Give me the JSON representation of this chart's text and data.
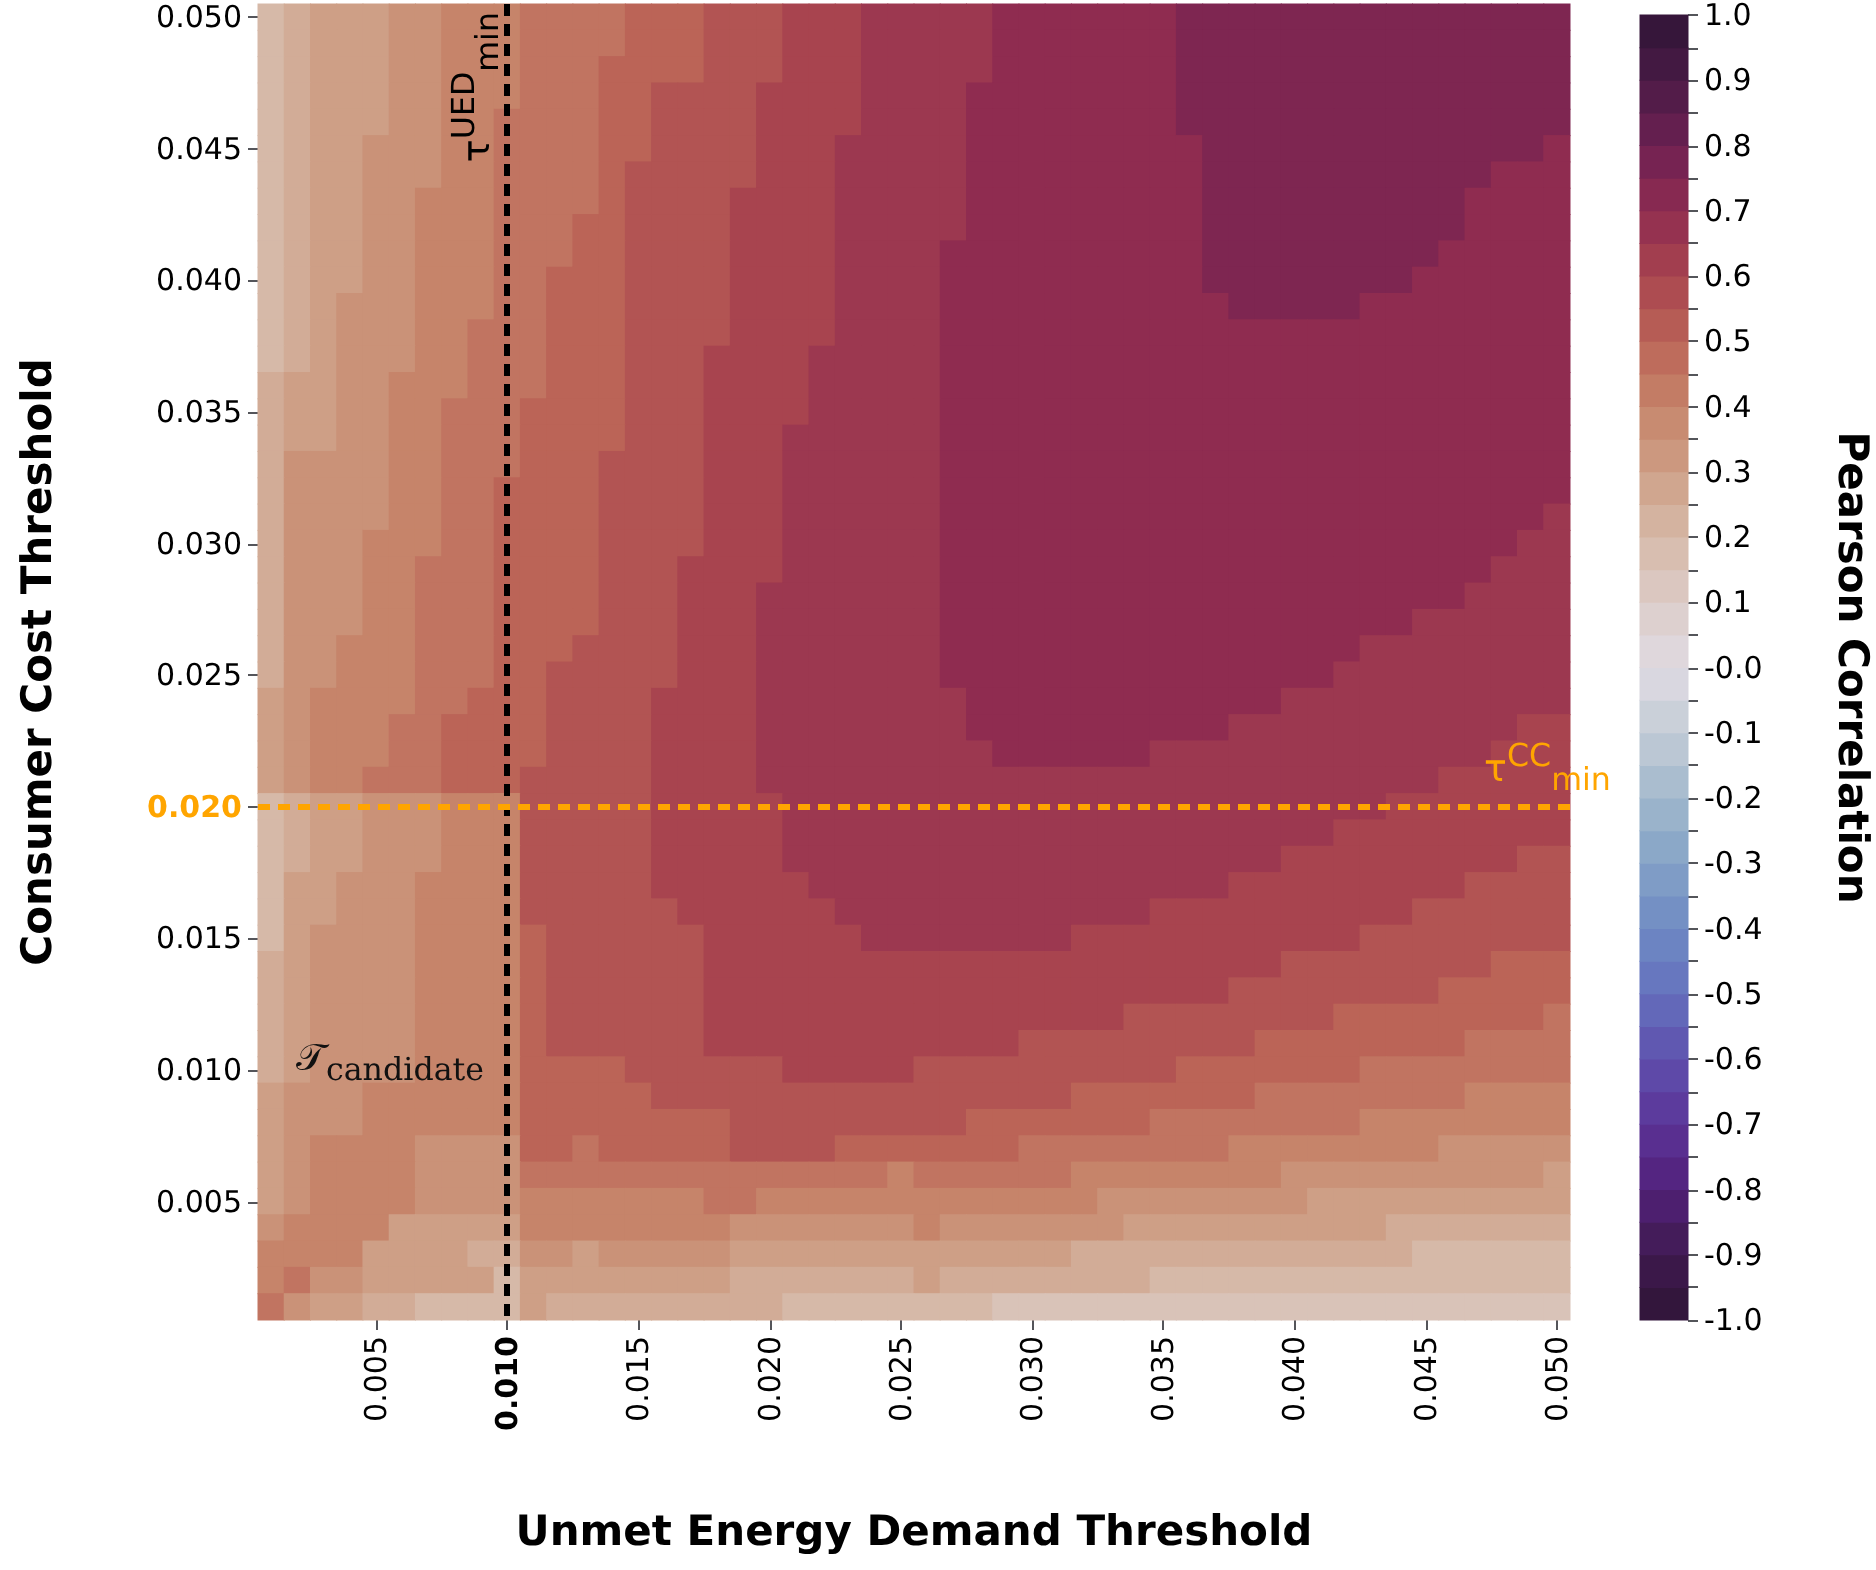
{
  "chart_data": {
    "type": "heatmap",
    "xlabel": "Unmet Energy Demand Threshold",
    "ylabel": "Consumer Cost Threshold",
    "clabel": "Pearson Correlation",
    "categories": [
      null,
      null,
      null,
      null,
      "0.005",
      null,
      null,
      null,
      null,
      "0.010",
      null,
      null,
      null,
      null,
      "0.015",
      null,
      null,
      null,
      null,
      "0.020",
      null,
      null,
      null,
      null,
      "0.025",
      null,
      null,
      null,
      null,
      "0.030",
      null,
      null,
      null,
      null,
      "0.035",
      null,
      null,
      null,
      null,
      "0.040",
      null,
      null,
      null,
      null,
      "0.045",
      null,
      null,
      null,
      null,
      "0.050"
    ],
    "y_categories": [
      "0.050",
      null,
      null,
      null,
      null,
      "0.045",
      null,
      null,
      null,
      null,
      "0.040",
      null,
      null,
      null,
      null,
      "0.035",
      null,
      null,
      null,
      null,
      "0.030",
      null,
      null,
      null,
      null,
      "0.025",
      null,
      null,
      null,
      null,
      "0.020",
      null,
      null,
      null,
      null,
      "0.015",
      null,
      null,
      null,
      null,
      "0.010",
      null,
      null,
      null,
      null,
      "0.005",
      null,
      null,
      null,
      null
    ],
    "clim": [
      -1,
      1
    ],
    "cticks": [
      {
        "value": -1,
        "label": "-1.0"
      },
      {
        "value": -0.95,
        "label": null
      },
      -0.9,
      {
        "value": -0.85,
        "label": null
      },
      -0.8,
      {
        "value": -0.75,
        "label": null
      },
      -0.7,
      {
        "value": -0.65,
        "label": null
      },
      -0.6,
      {
        "value": -0.55,
        "label": null
      },
      -0.5,
      {
        "value": -0.45,
        "label": null
      },
      -0.4,
      {
        "value": -0.35,
        "label": null
      },
      -0.3,
      {
        "value": -0.25,
        "label": null
      },
      -0.2,
      {
        "value": -0.15,
        "label": null
      },
      -0.1,
      {
        "value": -0.05,
        "label": null
      },
      {
        "value": 0,
        "label": "-0.0"
      },
      {
        "value": 0.05,
        "label": null
      },
      0.1,
      {
        "value": 0.15,
        "label": null
      },
      0.2,
      {
        "value": 0.25,
        "label": null
      },
      0.3,
      {
        "value": 0.35,
        "label": null
      },
      0.4,
      {
        "value": 0.45,
        "label": null
      },
      0.5,
      {
        "value": 0.55,
        "label": null
      },
      0.6,
      {
        "value": 0.65,
        "label": null
      },
      0.7,
      {
        "value": 0.75,
        "label": null
      },
      0.8,
      {
        "value": 0.85,
        "label": null
      },
      0.9,
      {
        "value": 0.95,
        "label": null
      },
      {
        "value": 1,
        "label": "1.0"
      }
    ],
    "ref_lines": [
      {
        "axis": "x",
        "value": "0.010",
        "label": "τ$^{UED}$$_{min}$",
        "color": "#000000",
        "line_style": "dashed"
      },
      {
        "axis": "y",
        "value": "0.020",
        "label": "τ$^{CC}$$_{min}$",
        "color": "#ffa500",
        "line_style": "dashed"
      }
    ],
    "annotations": [
      "𝒯$_{candidate}$"
    ],
    "cells": [
      [
        0.2,
        0.25,
        0.3,
        0.3,
        0.3,
        0.35,
        0.35,
        0.4,
        0.4,
        0.4,
        0.45,
        0.45,
        0.45,
        0.45,
        0.5,
        0.5,
        0.5,
        0.55,
        0.55,
        0.55,
        0.6,
        0.6,
        0.6,
        0.65,
        0.65,
        0.65,
        0.65,
        0.65,
        0.7,
        0.7,
        0.7,
        0.7,
        0.7,
        0.7,
        0.7,
        0.75,
        0.75,
        0.75,
        0.75,
        0.75,
        0.75,
        0.75,
        0.75,
        0.75,
        0.75,
        0.75,
        0.75,
        0.75,
        0.75,
        0.75
      ],
      [
        0.2,
        0.25,
        0.3,
        0.3,
        0.3,
        0.35,
        0.35,
        0.4,
        0.4,
        0.4,
        0.45,
        0.45,
        0.45,
        0.45,
        0.5,
        0.5,
        0.5,
        0.55,
        0.55,
        0.55,
        0.6,
        0.6,
        0.6,
        0.65,
        0.65,
        0.65,
        0.65,
        0.65,
        0.7,
        0.7,
        0.7,
        0.7,
        0.7,
        0.7,
        0.7,
        0.75,
        0.75,
        0.75,
        0.75,
        0.75,
        0.75,
        0.75,
        0.75,
        0.75,
        0.75,
        0.75,
        0.75,
        0.75,
        0.75,
        0.75
      ],
      [
        0.2,
        0.25,
        0.3,
        0.3,
        0.3,
        0.35,
        0.35,
        0.4,
        0.4,
        0.4,
        0.45,
        0.45,
        0.45,
        0.5,
        0.5,
        0.5,
        0.5,
        0.55,
        0.55,
        0.55,
        0.6,
        0.6,
        0.6,
        0.65,
        0.65,
        0.65,
        0.65,
        0.65,
        0.7,
        0.7,
        0.7,
        0.7,
        0.7,
        0.7,
        0.7,
        0.75,
        0.75,
        0.75,
        0.75,
        0.75,
        0.75,
        0.75,
        0.75,
        0.75,
        0.75,
        0.75,
        0.75,
        0.75,
        0.75,
        0.75
      ],
      [
        0.2,
        0.25,
        0.3,
        0.3,
        0.3,
        0.35,
        0.35,
        0.4,
        0.4,
        0.4,
        0.45,
        0.45,
        0.45,
        0.5,
        0.5,
        0.55,
        0.55,
        0.55,
        0.55,
        0.6,
        0.6,
        0.6,
        0.6,
        0.65,
        0.65,
        0.65,
        0.65,
        0.7,
        0.7,
        0.7,
        0.7,
        0.7,
        0.7,
        0.7,
        0.7,
        0.75,
        0.75,
        0.75,
        0.75,
        0.75,
        0.75,
        0.75,
        0.75,
        0.75,
        0.75,
        0.75,
        0.75,
        0.75,
        0.75,
        0.75
      ],
      [
        0.2,
        0.25,
        0.3,
        0.3,
        0.3,
        0.35,
        0.35,
        0.4,
        0.4,
        0.45,
        0.45,
        0.45,
        0.45,
        0.5,
        0.5,
        0.55,
        0.55,
        0.55,
        0.55,
        0.6,
        0.6,
        0.6,
        0.6,
        0.65,
        0.65,
        0.65,
        0.65,
        0.7,
        0.7,
        0.7,
        0.7,
        0.7,
        0.7,
        0.7,
        0.7,
        0.75,
        0.75,
        0.75,
        0.75,
        0.75,
        0.75,
        0.75,
        0.75,
        0.75,
        0.75,
        0.75,
        0.75,
        0.75,
        0.75,
        0.75
      ],
      [
        0.2,
        0.25,
        0.3,
        0.3,
        0.35,
        0.35,
        0.35,
        0.4,
        0.4,
        0.45,
        0.45,
        0.45,
        0.45,
        0.5,
        0.5,
        0.55,
        0.55,
        0.55,
        0.55,
        0.6,
        0.6,
        0.6,
        0.65,
        0.65,
        0.65,
        0.65,
        0.65,
        0.7,
        0.7,
        0.7,
        0.7,
        0.7,
        0.7,
        0.7,
        0.7,
        0.7,
        0.75,
        0.75,
        0.75,
        0.75,
        0.75,
        0.75,
        0.75,
        0.75,
        0.75,
        0.75,
        0.75,
        0.75,
        0.75,
        0.7
      ],
      [
        0.2,
        0.25,
        0.3,
        0.3,
        0.35,
        0.35,
        0.35,
        0.4,
        0.4,
        0.45,
        0.45,
        0.45,
        0.45,
        0.5,
        0.55,
        0.55,
        0.55,
        0.55,
        0.55,
        0.6,
        0.6,
        0.6,
        0.65,
        0.65,
        0.65,
        0.65,
        0.65,
        0.7,
        0.7,
        0.7,
        0.7,
        0.7,
        0.7,
        0.7,
        0.7,
        0.7,
        0.75,
        0.75,
        0.75,
        0.75,
        0.75,
        0.75,
        0.75,
        0.75,
        0.75,
        0.75,
        0.75,
        0.7,
        0.7,
        0.7
      ],
      [
        0.2,
        0.25,
        0.3,
        0.3,
        0.35,
        0.35,
        0.4,
        0.4,
        0.4,
        0.45,
        0.45,
        0.45,
        0.45,
        0.5,
        0.55,
        0.55,
        0.55,
        0.55,
        0.6,
        0.6,
        0.6,
        0.6,
        0.65,
        0.65,
        0.65,
        0.65,
        0.65,
        0.7,
        0.7,
        0.7,
        0.7,
        0.7,
        0.7,
        0.7,
        0.7,
        0.7,
        0.75,
        0.75,
        0.75,
        0.75,
        0.75,
        0.75,
        0.75,
        0.75,
        0.75,
        0.75,
        0.7,
        0.7,
        0.7,
        0.7
      ],
      [
        0.2,
        0.25,
        0.3,
        0.3,
        0.35,
        0.35,
        0.4,
        0.4,
        0.4,
        0.45,
        0.45,
        0.45,
        0.5,
        0.5,
        0.55,
        0.55,
        0.55,
        0.55,
        0.6,
        0.6,
        0.6,
        0.6,
        0.65,
        0.65,
        0.65,
        0.65,
        0.65,
        0.7,
        0.7,
        0.7,
        0.7,
        0.7,
        0.7,
        0.7,
        0.7,
        0.7,
        0.75,
        0.75,
        0.75,
        0.75,
        0.75,
        0.75,
        0.75,
        0.75,
        0.75,
        0.75,
        0.7,
        0.7,
        0.7,
        0.7
      ],
      [
        0.2,
        0.25,
        0.3,
        0.3,
        0.35,
        0.35,
        0.4,
        0.4,
        0.4,
        0.45,
        0.45,
        0.45,
        0.5,
        0.5,
        0.55,
        0.55,
        0.55,
        0.55,
        0.6,
        0.6,
        0.6,
        0.6,
        0.65,
        0.65,
        0.65,
        0.65,
        0.7,
        0.7,
        0.7,
        0.7,
        0.7,
        0.7,
        0.7,
        0.7,
        0.7,
        0.7,
        0.75,
        0.75,
        0.75,
        0.75,
        0.75,
        0.75,
        0.75,
        0.75,
        0.75,
        0.7,
        0.7,
        0.7,
        0.7,
        0.7
      ],
      [
        0.2,
        0.25,
        0.3,
        0.3,
        0.35,
        0.35,
        0.4,
        0.4,
        0.4,
        0.45,
        0.45,
        0.5,
        0.5,
        0.5,
        0.55,
        0.55,
        0.55,
        0.55,
        0.6,
        0.6,
        0.6,
        0.6,
        0.65,
        0.65,
        0.65,
        0.65,
        0.7,
        0.7,
        0.7,
        0.7,
        0.7,
        0.7,
        0.7,
        0.7,
        0.7,
        0.7,
        0.75,
        0.75,
        0.75,
        0.75,
        0.75,
        0.75,
        0.75,
        0.75,
        0.7,
        0.7,
        0.7,
        0.7,
        0.7,
        0.7
      ],
      [
        0.2,
        0.25,
        0.3,
        0.35,
        0.35,
        0.35,
        0.4,
        0.4,
        0.4,
        0.45,
        0.45,
        0.5,
        0.5,
        0.5,
        0.55,
        0.55,
        0.55,
        0.55,
        0.6,
        0.6,
        0.6,
        0.6,
        0.65,
        0.65,
        0.65,
        0.65,
        0.7,
        0.7,
        0.7,
        0.7,
        0.7,
        0.7,
        0.7,
        0.7,
        0.7,
        0.7,
        0.7,
        0.75,
        0.75,
        0.75,
        0.75,
        0.75,
        0.7,
        0.7,
        0.7,
        0.7,
        0.7,
        0.7,
        0.7,
        0.7
      ],
      [
        0.2,
        0.25,
        0.3,
        0.35,
        0.35,
        0.35,
        0.4,
        0.4,
        0.45,
        0.45,
        0.45,
        0.5,
        0.5,
        0.5,
        0.55,
        0.55,
        0.55,
        0.55,
        0.6,
        0.6,
        0.6,
        0.6,
        0.65,
        0.65,
        0.65,
        0.65,
        0.7,
        0.7,
        0.7,
        0.7,
        0.7,
        0.7,
        0.7,
        0.7,
        0.7,
        0.7,
        0.7,
        0.7,
        0.7,
        0.7,
        0.7,
        0.7,
        0.7,
        0.7,
        0.7,
        0.7,
        0.7,
        0.7,
        0.7,
        0.7
      ],
      [
        0.2,
        0.25,
        0.3,
        0.35,
        0.35,
        0.35,
        0.4,
        0.4,
        0.45,
        0.45,
        0.45,
        0.5,
        0.5,
        0.5,
        0.55,
        0.55,
        0.55,
        0.6,
        0.6,
        0.6,
        0.6,
        0.65,
        0.65,
        0.65,
        0.65,
        0.65,
        0.7,
        0.7,
        0.7,
        0.7,
        0.7,
        0.7,
        0.7,
        0.7,
        0.7,
        0.7,
        0.7,
        0.7,
        0.7,
        0.7,
        0.7,
        0.7,
        0.7,
        0.7,
        0.7,
        0.7,
        0.7,
        0.7,
        0.7,
        0.7
      ],
      [
        0.25,
        0.3,
        0.3,
        0.35,
        0.35,
        0.4,
        0.4,
        0.4,
        0.45,
        0.45,
        0.45,
        0.5,
        0.5,
        0.5,
        0.55,
        0.55,
        0.55,
        0.6,
        0.6,
        0.6,
        0.6,
        0.65,
        0.65,
        0.65,
        0.65,
        0.65,
        0.7,
        0.7,
        0.7,
        0.7,
        0.7,
        0.7,
        0.7,
        0.7,
        0.7,
        0.7,
        0.7,
        0.7,
        0.7,
        0.7,
        0.7,
        0.7,
        0.7,
        0.7,
        0.7,
        0.7,
        0.7,
        0.7,
        0.7,
        0.7
      ],
      [
        0.25,
        0.3,
        0.3,
        0.35,
        0.35,
        0.4,
        0.4,
        0.45,
        0.45,
        0.45,
        0.5,
        0.5,
        0.5,
        0.5,
        0.55,
        0.55,
        0.55,
        0.6,
        0.6,
        0.6,
        0.6,
        0.65,
        0.65,
        0.65,
        0.65,
        0.65,
        0.7,
        0.7,
        0.7,
        0.7,
        0.7,
        0.7,
        0.7,
        0.7,
        0.7,
        0.7,
        0.7,
        0.7,
        0.7,
        0.7,
        0.7,
        0.7,
        0.7,
        0.7,
        0.7,
        0.7,
        0.7,
        0.7,
        0.7,
        0.7
      ],
      [
        0.25,
        0.3,
        0.3,
        0.35,
        0.35,
        0.4,
        0.4,
        0.45,
        0.45,
        0.45,
        0.5,
        0.5,
        0.5,
        0.5,
        0.55,
        0.55,
        0.55,
        0.6,
        0.6,
        0.6,
        0.65,
        0.65,
        0.65,
        0.65,
        0.65,
        0.65,
        0.7,
        0.7,
        0.7,
        0.7,
        0.7,
        0.7,
        0.7,
        0.7,
        0.7,
        0.7,
        0.7,
        0.7,
        0.7,
        0.7,
        0.7,
        0.7,
        0.7,
        0.7,
        0.7,
        0.7,
        0.7,
        0.7,
        0.7,
        0.7
      ],
      [
        0.25,
        0.35,
        0.35,
        0.35,
        0.35,
        0.4,
        0.4,
        0.45,
        0.45,
        0.45,
        0.5,
        0.5,
        0.5,
        0.55,
        0.55,
        0.55,
        0.55,
        0.6,
        0.6,
        0.6,
        0.65,
        0.65,
        0.65,
        0.65,
        0.65,
        0.65,
        0.7,
        0.7,
        0.7,
        0.7,
        0.7,
        0.7,
        0.7,
        0.7,
        0.7,
        0.7,
        0.7,
        0.7,
        0.7,
        0.7,
        0.7,
        0.7,
        0.7,
        0.7,
        0.7,
        0.7,
        0.7,
        0.7,
        0.7,
        0.7
      ],
      [
        0.25,
        0.35,
        0.35,
        0.35,
        0.35,
        0.4,
        0.4,
        0.45,
        0.45,
        0.5,
        0.5,
        0.5,
        0.5,
        0.55,
        0.55,
        0.55,
        0.55,
        0.6,
        0.6,
        0.6,
        0.65,
        0.65,
        0.65,
        0.65,
        0.65,
        0.65,
        0.7,
        0.7,
        0.7,
        0.7,
        0.7,
        0.7,
        0.7,
        0.7,
        0.7,
        0.7,
        0.7,
        0.7,
        0.7,
        0.7,
        0.7,
        0.7,
        0.7,
        0.7,
        0.7,
        0.7,
        0.7,
        0.7,
        0.7,
        0.7
      ],
      [
        0.25,
        0.35,
        0.35,
        0.35,
        0.35,
        0.4,
        0.4,
        0.45,
        0.45,
        0.5,
        0.5,
        0.5,
        0.5,
        0.55,
        0.55,
        0.55,
        0.55,
        0.6,
        0.6,
        0.6,
        0.65,
        0.65,
        0.65,
        0.65,
        0.65,
        0.65,
        0.7,
        0.7,
        0.7,
        0.7,
        0.7,
        0.7,
        0.7,
        0.7,
        0.7,
        0.7,
        0.7,
        0.7,
        0.7,
        0.7,
        0.7,
        0.7,
        0.7,
        0.7,
        0.7,
        0.7,
        0.7,
        0.7,
        0.7,
        0.65
      ],
      [
        0.25,
        0.35,
        0.35,
        0.35,
        0.4,
        0.4,
        0.4,
        0.45,
        0.45,
        0.5,
        0.5,
        0.5,
        0.5,
        0.55,
        0.55,
        0.55,
        0.55,
        0.6,
        0.6,
        0.6,
        0.65,
        0.65,
        0.65,
        0.65,
        0.65,
        0.65,
        0.7,
        0.7,
        0.7,
        0.7,
        0.7,
        0.7,
        0.7,
        0.7,
        0.7,
        0.7,
        0.7,
        0.7,
        0.7,
        0.7,
        0.7,
        0.7,
        0.7,
        0.7,
        0.7,
        0.7,
        0.7,
        0.7,
        0.65,
        0.65
      ],
      [
        0.25,
        0.35,
        0.35,
        0.35,
        0.4,
        0.4,
        0.45,
        0.45,
        0.45,
        0.5,
        0.5,
        0.5,
        0.5,
        0.55,
        0.55,
        0.55,
        0.6,
        0.6,
        0.6,
        0.6,
        0.65,
        0.65,
        0.65,
        0.65,
        0.65,
        0.65,
        0.7,
        0.7,
        0.7,
        0.7,
        0.7,
        0.7,
        0.7,
        0.7,
        0.7,
        0.7,
        0.7,
        0.7,
        0.7,
        0.7,
        0.7,
        0.7,
        0.7,
        0.7,
        0.7,
        0.7,
        0.7,
        0.65,
        0.65,
        0.65
      ],
      [
        0.25,
        0.35,
        0.35,
        0.35,
        0.4,
        0.4,
        0.45,
        0.45,
        0.45,
        0.5,
        0.5,
        0.5,
        0.5,
        0.55,
        0.55,
        0.55,
        0.6,
        0.6,
        0.6,
        0.65,
        0.65,
        0.65,
        0.65,
        0.65,
        0.65,
        0.65,
        0.7,
        0.7,
        0.7,
        0.7,
        0.7,
        0.7,
        0.7,
        0.7,
        0.7,
        0.7,
        0.7,
        0.7,
        0.7,
        0.7,
        0.7,
        0.7,
        0.7,
        0.7,
        0.7,
        0.7,
        0.65,
        0.65,
        0.65,
        0.65
      ],
      [
        0.25,
        0.35,
        0.35,
        0.35,
        0.4,
        0.4,
        0.45,
        0.45,
        0.45,
        0.5,
        0.5,
        0.5,
        0.5,
        0.55,
        0.55,
        0.55,
        0.6,
        0.6,
        0.6,
        0.65,
        0.65,
        0.65,
        0.65,
        0.65,
        0.65,
        0.65,
        0.7,
        0.7,
        0.7,
        0.7,
        0.7,
        0.7,
        0.7,
        0.7,
        0.7,
        0.7,
        0.7,
        0.7,
        0.7,
        0.7,
        0.7,
        0.7,
        0.7,
        0.7,
        0.65,
        0.65,
        0.65,
        0.65,
        0.65,
        0.65
      ],
      [
        0.25,
        0.35,
        0.35,
        0.4,
        0.4,
        0.4,
        0.45,
        0.45,
        0.45,
        0.5,
        0.5,
        0.5,
        0.55,
        0.55,
        0.55,
        0.55,
        0.6,
        0.6,
        0.6,
        0.65,
        0.65,
        0.65,
        0.65,
        0.65,
        0.65,
        0.65,
        0.7,
        0.7,
        0.7,
        0.7,
        0.7,
        0.7,
        0.7,
        0.7,
        0.7,
        0.7,
        0.7,
        0.7,
        0.7,
        0.7,
        0.7,
        0.7,
        0.65,
        0.65,
        0.65,
        0.65,
        0.65,
        0.65,
        0.65,
        0.65
      ],
      [
        0.25,
        0.35,
        0.35,
        0.4,
        0.4,
        0.4,
        0.45,
        0.45,
        0.45,
        0.5,
        0.5,
        0.55,
        0.55,
        0.55,
        0.55,
        0.55,
        0.6,
        0.6,
        0.6,
        0.65,
        0.65,
        0.65,
        0.65,
        0.65,
        0.65,
        0.65,
        0.7,
        0.7,
        0.7,
        0.7,
        0.7,
        0.7,
        0.7,
        0.7,
        0.7,
        0.7,
        0.7,
        0.7,
        0.7,
        0.7,
        0.7,
        0.65,
        0.65,
        0.65,
        0.65,
        0.65,
        0.65,
        0.65,
        0.65,
        0.65
      ],
      [
        0.3,
        0.35,
        0.4,
        0.4,
        0.4,
        0.4,
        0.45,
        0.45,
        0.5,
        0.5,
        0.5,
        0.55,
        0.55,
        0.55,
        0.55,
        0.6,
        0.6,
        0.6,
        0.6,
        0.65,
        0.65,
        0.65,
        0.65,
        0.65,
        0.65,
        0.65,
        0.65,
        0.7,
        0.7,
        0.7,
        0.7,
        0.7,
        0.7,
        0.7,
        0.7,
        0.7,
        0.7,
        0.7,
        0.7,
        0.65,
        0.65,
        0.65,
        0.65,
        0.65,
        0.65,
        0.65,
        0.65,
        0.65,
        0.65,
        0.65
      ],
      [
        0.3,
        0.35,
        0.4,
        0.4,
        0.4,
        0.45,
        0.45,
        0.5,
        0.5,
        0.5,
        0.5,
        0.55,
        0.55,
        0.55,
        0.55,
        0.6,
        0.6,
        0.6,
        0.6,
        0.65,
        0.65,
        0.65,
        0.65,
        0.65,
        0.65,
        0.65,
        0.65,
        0.7,
        0.7,
        0.7,
        0.7,
        0.7,
        0.7,
        0.7,
        0.7,
        0.7,
        0.7,
        0.65,
        0.65,
        0.65,
        0.65,
        0.65,
        0.65,
        0.65,
        0.65,
        0.65,
        0.65,
        0.65,
        0.6,
        0.6
      ],
      [
        0.3,
        0.35,
        0.4,
        0.4,
        0.4,
        0.45,
        0.45,
        0.5,
        0.5,
        0.5,
        0.5,
        0.55,
        0.55,
        0.55,
        0.55,
        0.6,
        0.6,
        0.6,
        0.6,
        0.65,
        0.65,
        0.65,
        0.65,
        0.65,
        0.65,
        0.65,
        0.65,
        0.65,
        0.7,
        0.7,
        0.7,
        0.7,
        0.7,
        0.7,
        0.65,
        0.65,
        0.65,
        0.65,
        0.65,
        0.65,
        0.65,
        0.65,
        0.65,
        0.65,
        0.65,
        0.65,
        0.65,
        0.6,
        0.6,
        0.6
      ],
      [
        0.3,
        0.35,
        0.4,
        0.4,
        0.45,
        0.45,
        0.45,
        0.5,
        0.5,
        0.5,
        0.55,
        0.55,
        0.55,
        0.55,
        0.55,
        0.6,
        0.6,
        0.6,
        0.6,
        0.65,
        0.65,
        0.65,
        0.65,
        0.65,
        0.65,
        0.65,
        0.65,
        0.65,
        0.65,
        0.65,
        0.65,
        0.65,
        0.65,
        0.65,
        0.65,
        0.65,
        0.65,
        0.65,
        0.65,
        0.65,
        0.65,
        0.65,
        0.65,
        0.65,
        0.65,
        0.6,
        0.6,
        0.6,
        0.6,
        0.6
      ],
      [
        0.2,
        0.25,
        0.3,
        0.3,
        0.35,
        0.35,
        0.35,
        0.4,
        0.4,
        0.4,
        0.55,
        0.55,
        0.55,
        0.55,
        0.55,
        0.6,
        0.6,
        0.6,
        0.6,
        0.6,
        0.65,
        0.65,
        0.65,
        0.65,
        0.65,
        0.65,
        0.65,
        0.65,
        0.65,
        0.65,
        0.65,
        0.65,
        0.65,
        0.65,
        0.65,
        0.65,
        0.65,
        0.65,
        0.65,
        0.65,
        0.65,
        0.65,
        0.65,
        0.6,
        0.6,
        0.6,
        0.6,
        0.6,
        0.6,
        0.6
      ],
      [
        0.2,
        0.25,
        0.3,
        0.3,
        0.35,
        0.35,
        0.35,
        0.4,
        0.4,
        0.4,
        0.55,
        0.55,
        0.55,
        0.55,
        0.55,
        0.6,
        0.6,
        0.6,
        0.6,
        0.6,
        0.65,
        0.65,
        0.65,
        0.65,
        0.65,
        0.65,
        0.65,
        0.65,
        0.65,
        0.65,
        0.65,
        0.65,
        0.65,
        0.65,
        0.65,
        0.65,
        0.65,
        0.65,
        0.65,
        0.65,
        0.65,
        0.6,
        0.6,
        0.6,
        0.6,
        0.6,
        0.6,
        0.6,
        0.6,
        0.6
      ],
      [
        0.2,
        0.25,
        0.3,
        0.3,
        0.35,
        0.35,
        0.35,
        0.4,
        0.4,
        0.4,
        0.55,
        0.55,
        0.55,
        0.55,
        0.55,
        0.6,
        0.6,
        0.6,
        0.6,
        0.6,
        0.65,
        0.65,
        0.65,
        0.65,
        0.65,
        0.65,
        0.65,
        0.65,
        0.65,
        0.65,
        0.65,
        0.65,
        0.65,
        0.65,
        0.65,
        0.65,
        0.65,
        0.65,
        0.65,
        0.6,
        0.6,
        0.6,
        0.6,
        0.6,
        0.6,
        0.6,
        0.6,
        0.6,
        0.55,
        0.55
      ],
      [
        0.2,
        0.3,
        0.3,
        0.35,
        0.35,
        0.35,
        0.4,
        0.4,
        0.4,
        0.4,
        0.55,
        0.55,
        0.55,
        0.55,
        0.55,
        0.6,
        0.6,
        0.6,
        0.6,
        0.6,
        0.6,
        0.65,
        0.65,
        0.65,
        0.65,
        0.65,
        0.65,
        0.65,
        0.65,
        0.65,
        0.65,
        0.65,
        0.65,
        0.65,
        0.65,
        0.65,
        0.65,
        0.6,
        0.6,
        0.6,
        0.6,
        0.6,
        0.6,
        0.6,
        0.6,
        0.6,
        0.55,
        0.55,
        0.55,
        0.55
      ],
      [
        0.2,
        0.3,
        0.3,
        0.35,
        0.35,
        0.35,
        0.4,
        0.4,
        0.4,
        0.4,
        0.55,
        0.55,
        0.55,
        0.55,
        0.55,
        0.55,
        0.6,
        0.6,
        0.6,
        0.6,
        0.6,
        0.6,
        0.65,
        0.65,
        0.65,
        0.65,
        0.65,
        0.65,
        0.65,
        0.65,
        0.65,
        0.65,
        0.65,
        0.65,
        0.6,
        0.6,
        0.6,
        0.6,
        0.6,
        0.6,
        0.6,
        0.6,
        0.6,
        0.6,
        0.55,
        0.55,
        0.55,
        0.55,
        0.55,
        0.55
      ],
      [
        0.2,
        0.3,
        0.35,
        0.35,
        0.35,
        0.35,
        0.4,
        0.4,
        0.4,
        0.4,
        0.5,
        0.55,
        0.55,
        0.55,
        0.55,
        0.55,
        0.55,
        0.6,
        0.6,
        0.6,
        0.6,
        0.6,
        0.6,
        0.65,
        0.65,
        0.65,
        0.65,
        0.65,
        0.65,
        0.65,
        0.65,
        0.6,
        0.6,
        0.6,
        0.6,
        0.6,
        0.6,
        0.6,
        0.6,
        0.6,
        0.6,
        0.6,
        0.55,
        0.55,
        0.55,
        0.55,
        0.55,
        0.55,
        0.55,
        0.55
      ],
      [
        0.25,
        0.3,
        0.35,
        0.35,
        0.35,
        0.35,
        0.4,
        0.4,
        0.4,
        0.4,
        0.5,
        0.55,
        0.55,
        0.55,
        0.55,
        0.55,
        0.55,
        0.6,
        0.6,
        0.6,
        0.6,
        0.6,
        0.6,
        0.6,
        0.6,
        0.6,
        0.6,
        0.6,
        0.6,
        0.6,
        0.6,
        0.6,
        0.6,
        0.6,
        0.6,
        0.6,
        0.6,
        0.6,
        0.6,
        0.55,
        0.55,
        0.55,
        0.55,
        0.55,
        0.55,
        0.55,
        0.55,
        0.5,
        0.5,
        0.5
      ],
      [
        0.25,
        0.3,
        0.35,
        0.35,
        0.35,
        0.35,
        0.4,
        0.4,
        0.4,
        0.4,
        0.5,
        0.55,
        0.55,
        0.55,
        0.55,
        0.55,
        0.55,
        0.6,
        0.6,
        0.6,
        0.6,
        0.6,
        0.6,
        0.6,
        0.6,
        0.6,
        0.6,
        0.6,
        0.6,
        0.6,
        0.6,
        0.6,
        0.6,
        0.6,
        0.6,
        0.6,
        0.6,
        0.55,
        0.55,
        0.55,
        0.55,
        0.55,
        0.55,
        0.55,
        0.55,
        0.5,
        0.5,
        0.5,
        0.5,
        0.5
      ],
      [
        0.25,
        0.3,
        0.35,
        0.35,
        0.35,
        0.35,
        0.4,
        0.4,
        0.4,
        0.4,
        0.5,
        0.55,
        0.55,
        0.55,
        0.55,
        0.55,
        0.55,
        0.6,
        0.6,
        0.6,
        0.6,
        0.6,
        0.6,
        0.6,
        0.6,
        0.6,
        0.6,
        0.6,
        0.6,
        0.6,
        0.6,
        0.6,
        0.6,
        0.55,
        0.55,
        0.55,
        0.55,
        0.55,
        0.55,
        0.55,
        0.55,
        0.5,
        0.5,
        0.5,
        0.5,
        0.5,
        0.5,
        0.5,
        0.5,
        0.45
      ],
      [
        0.25,
        0.3,
        0.35,
        0.35,
        0.35,
        0.35,
        0.4,
        0.4,
        0.4,
        0.4,
        0.5,
        0.55,
        0.55,
        0.55,
        0.55,
        0.55,
        0.55,
        0.6,
        0.6,
        0.6,
        0.6,
        0.6,
        0.6,
        0.6,
        0.6,
        0.6,
        0.6,
        0.6,
        0.6,
        0.55,
        0.55,
        0.55,
        0.55,
        0.55,
        0.55,
        0.55,
        0.55,
        0.55,
        0.5,
        0.5,
        0.5,
        0.5,
        0.5,
        0.5,
        0.5,
        0.5,
        0.45,
        0.45,
        0.45,
        0.45
      ],
      [
        0.25,
        0.3,
        0.35,
        0.35,
        0.35,
        0.35,
        0.4,
        0.4,
        0.4,
        0.4,
        0.5,
        0.5,
        0.5,
        0.5,
        0.55,
        0.55,
        0.55,
        0.55,
        0.55,
        0.55,
        0.6,
        0.6,
        0.6,
        0.6,
        0.6,
        0.55,
        0.55,
        0.55,
        0.55,
        0.55,
        0.55,
        0.55,
        0.55,
        0.55,
        0.55,
        0.5,
        0.5,
        0.5,
        0.5,
        0.5,
        0.5,
        0.5,
        0.45,
        0.45,
        0.45,
        0.45,
        0.45,
        0.45,
        0.45,
        0.45
      ],
      [
        0.3,
        0.35,
        0.35,
        0.35,
        0.4,
        0.4,
        0.4,
        0.4,
        0.4,
        0.4,
        0.5,
        0.5,
        0.5,
        0.5,
        0.5,
        0.55,
        0.55,
        0.55,
        0.55,
        0.55,
        0.55,
        0.55,
        0.55,
        0.55,
        0.55,
        0.55,
        0.55,
        0.55,
        0.55,
        0.55,
        0.55,
        0.5,
        0.5,
        0.5,
        0.5,
        0.5,
        0.5,
        0.5,
        0.45,
        0.45,
        0.45,
        0.45,
        0.45,
        0.45,
        0.45,
        0.45,
        0.4,
        0.4,
        0.4,
        0.4
      ],
      [
        0.3,
        0.35,
        0.35,
        0.35,
        0.4,
        0.4,
        0.4,
        0.4,
        0.4,
        0.4,
        0.5,
        0.5,
        0.5,
        0.5,
        0.5,
        0.5,
        0.5,
        0.5,
        0.55,
        0.55,
        0.55,
        0.55,
        0.55,
        0.55,
        0.55,
        0.55,
        0.55,
        0.5,
        0.5,
        0.5,
        0.5,
        0.5,
        0.5,
        0.5,
        0.45,
        0.45,
        0.45,
        0.45,
        0.45,
        0.45,
        0.45,
        0.45,
        0.4,
        0.4,
        0.4,
        0.4,
        0.4,
        0.4,
        0.4,
        0.4
      ],
      [
        0.3,
        0.35,
        0.4,
        0.4,
        0.4,
        0.4,
        0.35,
        0.35,
        0.35,
        0.35,
        0.5,
        0.5,
        0.45,
        0.5,
        0.5,
        0.5,
        0.5,
        0.5,
        0.55,
        0.55,
        0.55,
        0.55,
        0.5,
        0.5,
        0.5,
        0.5,
        0.5,
        0.5,
        0.5,
        0.45,
        0.45,
        0.45,
        0.45,
        0.45,
        0.45,
        0.45,
        0.45,
        0.4,
        0.4,
        0.4,
        0.4,
        0.4,
        0.4,
        0.4,
        0.4,
        0.35,
        0.35,
        0.35,
        0.35,
        0.35
      ],
      [
        0.3,
        0.35,
        0.4,
        0.4,
        0.4,
        0.4,
        0.35,
        0.35,
        0.35,
        0.35,
        0.45,
        0.45,
        0.45,
        0.45,
        0.45,
        0.45,
        0.45,
        0.45,
        0.45,
        0.45,
        0.45,
        0.45,
        0.45,
        0.45,
        0.4,
        0.45,
        0.45,
        0.45,
        0.45,
        0.45,
        0.45,
        0.4,
        0.4,
        0.4,
        0.4,
        0.4,
        0.4,
        0.4,
        0.4,
        0.35,
        0.35,
        0.35,
        0.35,
        0.35,
        0.35,
        0.35,
        0.35,
        0.35,
        0.35,
        0.3
      ],
      [
        0.3,
        0.35,
        0.4,
        0.4,
        0.4,
        0.4,
        0.35,
        0.35,
        0.35,
        0.35,
        0.4,
        0.4,
        0.4,
        0.4,
        0.4,
        0.4,
        0.4,
        0.45,
        0.45,
        0.4,
        0.4,
        0.4,
        0.4,
        0.4,
        0.4,
        0.4,
        0.4,
        0.4,
        0.4,
        0.4,
        0.4,
        0.4,
        0.35,
        0.35,
        0.35,
        0.35,
        0.35,
        0.35,
        0.35,
        0.35,
        0.3,
        0.3,
        0.3,
        0.3,
        0.3,
        0.3,
        0.3,
        0.3,
        0.3,
        0.3
      ],
      [
        0.35,
        0.4,
        0.4,
        0.4,
        0.4,
        0.3,
        0.3,
        0.3,
        0.3,
        0.3,
        0.4,
        0.4,
        0.4,
        0.4,
        0.4,
        0.4,
        0.4,
        0.4,
        0.35,
        0.35,
        0.35,
        0.35,
        0.35,
        0.35,
        0.35,
        0.4,
        0.35,
        0.35,
        0.35,
        0.35,
        0.35,
        0.35,
        0.35,
        0.3,
        0.3,
        0.3,
        0.3,
        0.3,
        0.3,
        0.3,
        0.3,
        0.3,
        0.3,
        0.25,
        0.25,
        0.25,
        0.25,
        0.25,
        0.25,
        0.25
      ],
      [
        0.4,
        0.4,
        0.4,
        0.4,
        0.3,
        0.3,
        0.3,
        0.3,
        0.25,
        0.25,
        0.35,
        0.35,
        0.3,
        0.35,
        0.35,
        0.35,
        0.35,
        0.35,
        0.3,
        0.3,
        0.3,
        0.3,
        0.3,
        0.3,
        0.3,
        0.3,
        0.3,
        0.3,
        0.3,
        0.3,
        0.3,
        0.25,
        0.25,
        0.25,
        0.25,
        0.25,
        0.25,
        0.25,
        0.25,
        0.25,
        0.25,
        0.25,
        0.25,
        0.25,
        0.2,
        0.2,
        0.2,
        0.2,
        0.2,
        0.2
      ],
      [
        0.4,
        0.45,
        0.35,
        0.35,
        0.3,
        0.3,
        0.3,
        0.3,
        0.3,
        0.2,
        0.3,
        0.3,
        0.3,
        0.3,
        0.3,
        0.3,
        0.3,
        0.3,
        0.25,
        0.25,
        0.25,
        0.25,
        0.25,
        0.25,
        0.25,
        0.3,
        0.25,
        0.25,
        0.25,
        0.25,
        0.25,
        0.25,
        0.25,
        0.25,
        0.2,
        0.2,
        0.2,
        0.2,
        0.2,
        0.2,
        0.2,
        0.2,
        0.2,
        0.2,
        0.2,
        0.2,
        0.2,
        0.2,
        0.2,
        0.2
      ],
      [
        0.45,
        0.35,
        0.3,
        0.3,
        0.25,
        0.25,
        0.2,
        0.2,
        0.2,
        0.2,
        0.3,
        0.25,
        0.25,
        0.25,
        0.25,
        0.25,
        0.25,
        0.25,
        0.25,
        0.25,
        0.2,
        0.2,
        0.2,
        0.2,
        0.2,
        0.2,
        0.2,
        0.2,
        0.15,
        0.15,
        0.15,
        0.15,
        0.15,
        0.15,
        0.15,
        0.15,
        0.15,
        0.15,
        0.15,
        0.15,
        0.15,
        0.15,
        0.15,
        0.15,
        0.15,
        0.15,
        0.15,
        0.15,
        0.15,
        0.15
      ]
    ]
  }
}
